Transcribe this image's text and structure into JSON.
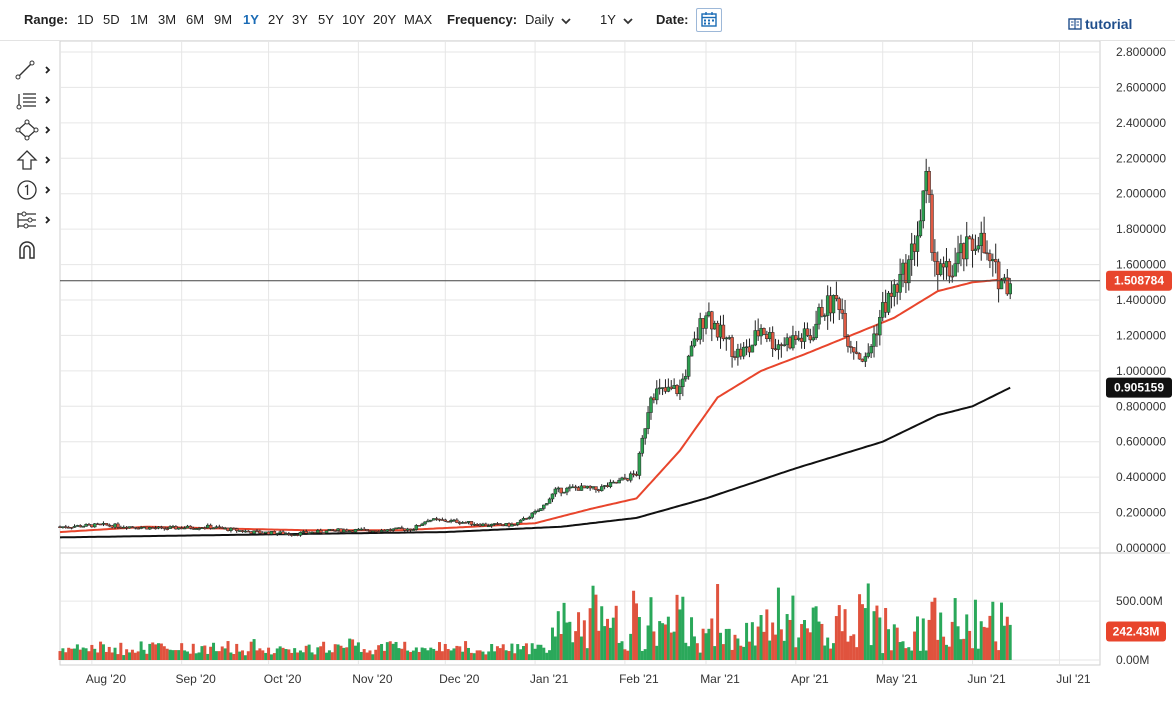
{
  "toolbar": {
    "range_label": "Range:",
    "ranges": [
      "1D",
      "5D",
      "1M",
      "3M",
      "6M",
      "9M",
      "1Y",
      "2Y",
      "3Y",
      "5Y",
      "10Y",
      "20Y",
      "MAX"
    ],
    "active_range": "1Y",
    "frequency_label": "Frequency:",
    "frequency_value": "Daily",
    "period_value": "1Y",
    "date_label": "Date:",
    "tutorial_label": "tutorial",
    "accent_color": "#1a6bb5"
  },
  "side_tools": [
    "line-tool-icon",
    "fib-tool-icon",
    "shape-tool-icon",
    "arrow-tool-icon",
    "counter-tool-icon",
    "measure-tool-icon",
    "magnet-icon"
  ],
  "chart_data": {
    "type": "candlestick",
    "frequency": "Daily",
    "price_axis": {
      "ticks": [
        "2.800000",
        "2.600000",
        "2.400000",
        "2.200000",
        "2.000000",
        "1.800000",
        "1.600000",
        "1.400000",
        "1.200000",
        "1.000000",
        "0.800000",
        "0.600000",
        "0.400000",
        "0.200000",
        "0.000000"
      ],
      "min": 0.0,
      "max": 2.8
    },
    "x_axis": {
      "ticks": [
        "Aug '20",
        "Sep '20",
        "Oct '20",
        "Nov '20",
        "Dec '20",
        "Jan '21",
        "Feb '21",
        "Mar '21",
        "Apr '21",
        "May '21",
        "Jun '21",
        "Jul '21"
      ],
      "start": "2020-07-21",
      "end": "2021-07-15",
      "tick_dates": [
        "2020-08-01",
        "2020-09-01",
        "2020-10-01",
        "2020-11-01",
        "2020-12-01",
        "2021-01-01",
        "2021-02-01",
        "2021-03-01",
        "2021-04-01",
        "2021-05-01",
        "2021-06-01",
        "2021-07-01"
      ]
    },
    "last_price_label": "1.508784",
    "last_price": 1.508784,
    "ma_long_label": "0.905159",
    "ma_long_value": 0.905159,
    "volume_axis": {
      "ticks": [
        "500.00M",
        "0.00M"
      ],
      "max": 850
    },
    "last_volume_label": "242.43M",
    "last_volume": 242.43,
    "price_anchors": [
      [
        "2020-07-21",
        0.12
      ],
      [
        "2020-08-05",
        0.13
      ],
      [
        "2020-08-25",
        0.11
      ],
      [
        "2020-09-10",
        0.12
      ],
      [
        "2020-09-25",
        0.09
      ],
      [
        "2020-10-10",
        0.08
      ],
      [
        "2020-10-25",
        0.1
      ],
      [
        "2020-11-10",
        0.1
      ],
      [
        "2020-11-20",
        0.11
      ],
      [
        "2020-11-25",
        0.16
      ],
      [
        "2020-12-05",
        0.15
      ],
      [
        "2020-12-15",
        0.13
      ],
      [
        "2020-12-25",
        0.13
      ],
      [
        "2021-01-03",
        0.22
      ],
      [
        "2021-01-08",
        0.32
      ],
      [
        "2021-01-15",
        0.34
      ],
      [
        "2021-01-22",
        0.33
      ],
      [
        "2021-01-28",
        0.36
      ],
      [
        "2021-02-05",
        0.42
      ],
      [
        "2021-02-10",
        0.88
      ],
      [
        "2021-02-15",
        0.88
      ],
      [
        "2021-02-20",
        0.9
      ],
      [
        "2021-02-26",
        1.2
      ],
      [
        "2021-03-01",
        1.35
      ],
      [
        "2021-03-06",
        1.2
      ],
      [
        "2021-03-12",
        1.1
      ],
      [
        "2021-03-16",
        1.12
      ],
      [
        "2021-03-20",
        1.25
      ],
      [
        "2021-03-25",
        1.15
      ],
      [
        "2021-04-01",
        1.18
      ],
      [
        "2021-04-06",
        1.19
      ],
      [
        "2021-04-10",
        1.35
      ],
      [
        "2021-04-16",
        1.4
      ],
      [
        "2021-04-19",
        1.18
      ],
      [
        "2021-04-25",
        1.05
      ],
      [
        "2021-05-01",
        1.35
      ],
      [
        "2021-05-05",
        1.45
      ],
      [
        "2021-05-10",
        1.6
      ],
      [
        "2021-05-14",
        1.85
      ],
      [
        "2021-05-16",
        2.05
      ],
      [
        "2021-05-18",
        1.75
      ],
      [
        "2021-05-20",
        1.55
      ],
      [
        "2021-05-24",
        1.55
      ],
      [
        "2021-05-28",
        1.65
      ],
      [
        "2021-06-01",
        1.7
      ],
      [
        "2021-06-03",
        1.78
      ],
      [
        "2021-06-06",
        1.62
      ],
      [
        "2021-06-09",
        1.55
      ],
      [
        "2021-06-12",
        1.5
      ],
      [
        "2021-06-14",
        1.508784
      ]
    ],
    "series": [
      {
        "name": "",
        "color": "#e8452c",
        "kind": "ma_short",
        "points": [
          [
            "2020-07-21",
            0.09
          ],
          [
            "2020-08-20",
            0.12
          ],
          [
            "2020-09-15",
            0.11
          ],
          [
            "2020-10-15",
            0.1
          ],
          [
            "2020-11-15",
            0.1
          ],
          [
            "2020-12-10",
            0.12
          ],
          [
            "2021-01-01",
            0.14
          ],
          [
            "2021-01-20",
            0.22
          ],
          [
            "2021-02-05",
            0.28
          ],
          [
            "2021-02-20",
            0.55
          ],
          [
            "2021-03-05",
            0.85
          ],
          [
            "2021-03-20",
            1.0
          ],
          [
            "2021-04-05",
            1.1
          ],
          [
            "2021-04-20",
            1.2
          ],
          [
            "2021-05-05",
            1.3
          ],
          [
            "2021-05-20",
            1.45
          ],
          [
            "2021-06-01",
            1.5
          ],
          [
            "2021-06-14",
            1.52
          ]
        ]
      },
      {
        "name": "",
        "color": "#111111",
        "kind": "ma_long",
        "points": [
          [
            "2020-07-21",
            0.06
          ],
          [
            "2020-09-01",
            0.07
          ],
          [
            "2020-10-15",
            0.08
          ],
          [
            "2020-12-01",
            0.09
          ],
          [
            "2021-01-10",
            0.12
          ],
          [
            "2021-02-05",
            0.17
          ],
          [
            "2021-03-01",
            0.28
          ],
          [
            "2021-04-01",
            0.45
          ],
          [
            "2021-05-01",
            0.6
          ],
          [
            "2021-05-20",
            0.75
          ],
          [
            "2021-06-01",
            0.8
          ],
          [
            "2021-06-14",
            0.905159
          ]
        ]
      }
    ],
    "colors": {
      "up": "#2c9e4f",
      "down": "#e05a43",
      "last_price_bg": "#e8452c",
      "ma_long_bg": "#111111",
      "volume_up": "#2aa85a",
      "volume_down": "#e0533e"
    }
  }
}
